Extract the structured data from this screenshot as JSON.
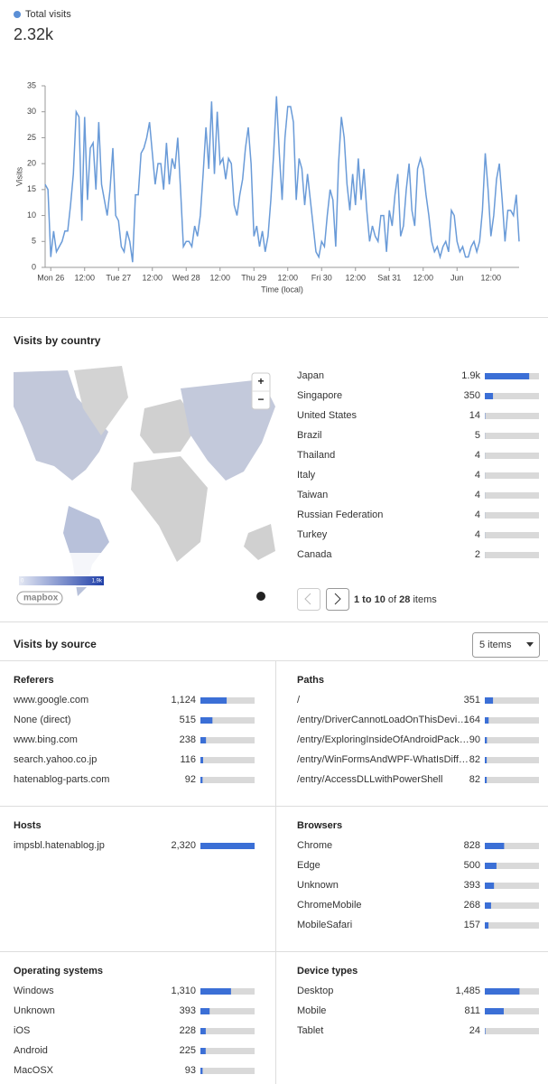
{
  "summary": {
    "total": {
      "value": 2320,
      "label": "2.32k"
    }
  },
  "chart_data": {
    "type": "line",
    "ylabel": "Visits",
    "xlabel": "Time (local)",
    "series": [
      {
        "name": "Total visits",
        "color": "#6a9bd8",
        "values": [
          16,
          15,
          2,
          7,
          3,
          4,
          5,
          7,
          7,
          12,
          18,
          30,
          29,
          9,
          29,
          13,
          23,
          24,
          15,
          28,
          16,
          13,
          10,
          15,
          23,
          10,
          9,
          4,
          3,
          7,
          5,
          1,
          14,
          14,
          22,
          23,
          25,
          28,
          22,
          16,
          20,
          20,
          15,
          24,
          16,
          21,
          19,
          25,
          15,
          4,
          5,
          5,
          4,
          8,
          6,
          10,
          18,
          27,
          19,
          32,
          18,
          30,
          20,
          21,
          17,
          21,
          20,
          12,
          10,
          14,
          17,
          23,
          27,
          20,
          6,
          8,
          4,
          7,
          3,
          6,
          13,
          22,
          33,
          22,
          13,
          25,
          31,
          31,
          28,
          13,
          21,
          19,
          12,
          18,
          13,
          8,
          3,
          2,
          5,
          4,
          10,
          15,
          13,
          4,
          20,
          29,
          25,
          16,
          11,
          18,
          12,
          21,
          13,
          19,
          11,
          5,
          8,
          6,
          5,
          10,
          10,
          3,
          11,
          8,
          14,
          18,
          6,
          8,
          15,
          20,
          11,
          8,
          19,
          21,
          19,
          14,
          10,
          5,
          3,
          4,
          2,
          4,
          5,
          3,
          11,
          10,
          5,
          3,
          4,
          2,
          2,
          4,
          5,
          3,
          5,
          11,
          22,
          15,
          6,
          10,
          17,
          20,
          13,
          5,
          11,
          11,
          10,
          14,
          5
        ]
      }
    ],
    "xlim": [
      0,
      168
    ],
    "xticks": [
      {
        "value": 2,
        "label": "Mon 26"
      },
      {
        "value": 14,
        "label": "12:00"
      },
      {
        "value": 26,
        "label": "Tue 27"
      },
      {
        "value": 38,
        "label": "12:00"
      },
      {
        "value": 50,
        "label": "Wed 28"
      },
      {
        "value": 62,
        "label": "12:00"
      },
      {
        "value": 74,
        "label": "Thu 29"
      },
      {
        "value": 86,
        "label": "12:00"
      },
      {
        "value": 98,
        "label": "Fri 30"
      },
      {
        "value": 110,
        "label": "12:00"
      },
      {
        "value": 122,
        "label": "Sat 31"
      },
      {
        "value": 134,
        "label": "12:00"
      },
      {
        "value": 146,
        "label": "Jun"
      },
      {
        "value": 158,
        "label": "12:00"
      }
    ],
    "ylim": [
      0,
      35
    ],
    "yticks": [
      0,
      5,
      10,
      15,
      20,
      25,
      30,
      35
    ],
    "grid": false
  },
  "countries": {
    "title": "Visits by country",
    "names": [
      "Japan",
      "Singapore",
      "United States",
      "Brazil",
      "Thailand",
      "Italy",
      "Taiwan",
      "Russian Federation",
      "Turkey",
      "Canada"
    ],
    "values": [
      1900,
      350,
      14,
      5,
      4,
      4,
      4,
      4,
      4,
      2
    ],
    "value_labels": [
      "1.9k",
      "350",
      "14",
      "5",
      "4",
      "4",
      "4",
      "4",
      "4",
      "2"
    ],
    "bar_color": "#3b6fd6",
    "map_legend": {
      "min": 0,
      "max": {
        "value": 1900,
        "label": "1.9k"
      }
    },
    "map_zoom": [
      "+",
      "−"
    ],
    "map_attribution": "mapbox",
    "pagination": {
      "range": "1 to 10",
      "of": "of",
      "total": 28,
      "items": "items"
    }
  },
  "sources": {
    "title": "Visits by source",
    "selector": "5 items",
    "panels": [
      {
        "title": "Referers",
        "names": [
          "www.google.com",
          "None (direct)",
          "www.bing.com",
          "search.yahoo.co.jp",
          "hatenablog-parts.com"
        ],
        "values": [
          1124,
          515,
          238,
          116,
          92
        ],
        "value_labels": [
          "1,124",
          "515",
          "238",
          "116",
          "92"
        ]
      },
      {
        "title": "Paths",
        "names": [
          "/",
          "/entry/DriverCannotLoadOnThisDevi…",
          "/entry/ExploringInsideOfAndroidPack…",
          "/entry/WinFormsAndWPF-WhatIsDiff…",
          "/entry/AccessDLLwithPowerShell"
        ],
        "values": [
          351,
          164,
          90,
          82,
          82
        ]
      },
      {
        "title": "Hosts",
        "names": [
          "impsbl.hatenablog.jp"
        ],
        "values": [
          2320
        ],
        "value_labels": [
          "2,320"
        ]
      },
      {
        "title": "Browsers",
        "names": [
          "Chrome",
          "Edge",
          "Unknown",
          "ChromeMobile",
          "MobileSafari"
        ],
        "values": [
          828,
          500,
          393,
          268,
          157
        ]
      },
      {
        "title": "Operating systems",
        "names": [
          "Windows",
          "Unknown",
          "iOS",
          "Android",
          "MacOSX"
        ],
        "values": [
          1310,
          393,
          228,
          225,
          93
        ],
        "value_labels": [
          "1,310",
          "393",
          "228",
          "225",
          "93"
        ]
      },
      {
        "title": "Device types",
        "names": [
          "Desktop",
          "Mobile",
          "Tablet"
        ],
        "values": [
          1485,
          811,
          24
        ],
        "value_labels": [
          "1,485",
          "811",
          "24"
        ]
      }
    ]
  }
}
